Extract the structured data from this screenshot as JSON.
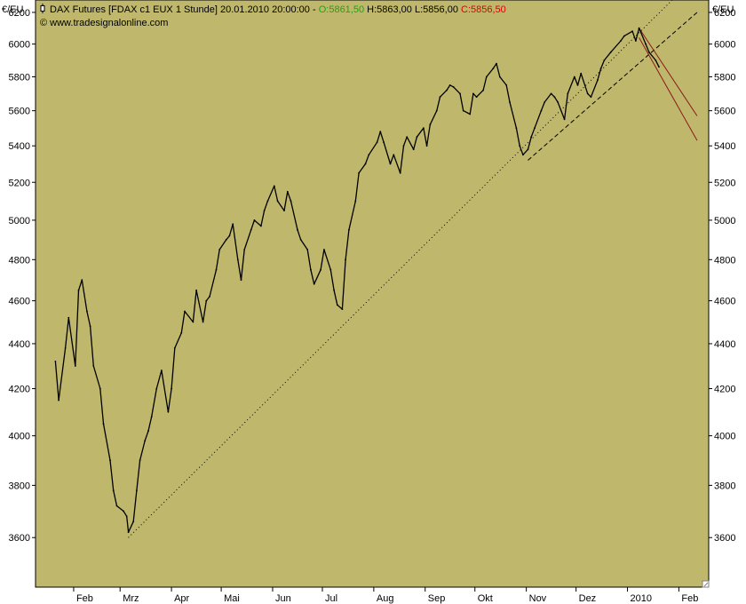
{
  "header": {
    "symbol_title": "DAX Futures [FDAX c1 EUX  1 Stunde]",
    "datetime": "20.01.2010 20:00:00",
    "separator": " - ",
    "open_label": "O:",
    "open_value": "5861,50",
    "high_label": "H:",
    "high_value": "5863,00",
    "low_label": "L:",
    "low_value": "5856,00",
    "close_label": "C:",
    "close_value": "5856,50",
    "copyright": "© www.tradesignalonline.com",
    "open_color": "#11aa11",
    "close_color": "#dd0000"
  },
  "chart_data": {
    "type": "line",
    "unit_label": "€/EU",
    "background_color": "#bfb86c",
    "price_color": "#000000",
    "channel_color": "#8b1a1a",
    "ylim": [
      3420,
      6280
    ],
    "y_scale": "log",
    "y_ticks": [
      3600,
      3800,
      4000,
      4200,
      4400,
      4600,
      4800,
      5000,
      5200,
      5400,
      5600,
      5800,
      6000,
      6200
    ],
    "x_labels": [
      "Feb",
      "Mrz",
      "Apr",
      "Mai",
      "Jun",
      "Jul",
      "Aug",
      "Sep",
      "Okt",
      "Nov",
      "Dez",
      "2010",
      "Feb"
    ],
    "grid": false,
    "series": [
      {
        "x": [
          "2009-01-21",
          "2009-01-23",
          "2009-01-27",
          "2009-01-29",
          "2009-02-02",
          "2009-02-04",
          "2009-02-06",
          "2009-02-09",
          "2009-02-11",
          "2009-02-13",
          "2009-02-17",
          "2009-02-19",
          "2009-02-23",
          "2009-02-25",
          "2009-02-27",
          "2009-03-03",
          "2009-03-05",
          "2009-03-06",
          "2009-03-09",
          "2009-03-11",
          "2009-03-13",
          "2009-03-16",
          "2009-03-18",
          "2009-03-20",
          "2009-03-23",
          "2009-03-26",
          "2009-03-30",
          "2009-04-01",
          "2009-04-03",
          "2009-04-07",
          "2009-04-09",
          "2009-04-14",
          "2009-04-16",
          "2009-04-20",
          "2009-04-22",
          "2009-04-24",
          "2009-04-28",
          "2009-04-30",
          "2009-05-04",
          "2009-05-06",
          "2009-05-08",
          "2009-05-11",
          "2009-05-13",
          "2009-05-15",
          "2009-05-19",
          "2009-05-21",
          "2009-05-25",
          "2009-05-27",
          "2009-05-29",
          "2009-06-02",
          "2009-06-04",
          "2009-06-08",
          "2009-06-10",
          "2009-06-12",
          "2009-06-16",
          "2009-06-18",
          "2009-06-22",
          "2009-06-24",
          "2009-06-26",
          "2009-06-30",
          "2009-07-02",
          "2009-07-06",
          "2009-07-08",
          "2009-07-10",
          "2009-07-13",
          "2009-07-15",
          "2009-07-17",
          "2009-07-21",
          "2009-07-23",
          "2009-07-27",
          "2009-07-29",
          "2009-08-03",
          "2009-08-05",
          "2009-08-07",
          "2009-08-11",
          "2009-08-13",
          "2009-08-17",
          "2009-08-19",
          "2009-08-21",
          "2009-08-25",
          "2009-08-27",
          "2009-08-31",
          "2009-09-02",
          "2009-09-04",
          "2009-09-08",
          "2009-09-10",
          "2009-09-14",
          "2009-09-16",
          "2009-09-18",
          "2009-09-22",
          "2009-09-24",
          "2009-09-28",
          "2009-09-30",
          "2009-10-02",
          "2009-10-06",
          "2009-10-08",
          "2009-10-12",
          "2009-10-14",
          "2009-10-16",
          "2009-10-20",
          "2009-10-22",
          "2009-10-26",
          "2009-10-28",
          "2009-10-30",
          "2009-11-02",
          "2009-11-04",
          "2009-11-06",
          "2009-11-10",
          "2009-11-12",
          "2009-11-16",
          "2009-11-18",
          "2009-11-20",
          "2009-11-24",
          "2009-11-26",
          "2009-11-30",
          "2009-12-02",
          "2009-12-04",
          "2009-12-08",
          "2009-12-10",
          "2009-12-14",
          "2009-12-16",
          "2009-12-18",
          "2009-12-22",
          "2009-12-28",
          "2009-12-30",
          "2010-01-04",
          "2010-01-06",
          "2010-01-08",
          "2010-01-12",
          "2010-01-14",
          "2010-01-18",
          "2010-01-20"
        ],
        "values": [
          4320,
          4150,
          4380,
          4520,
          4300,
          4650,
          4700,
          4550,
          4480,
          4300,
          4200,
          4050,
          3900,
          3780,
          3720,
          3700,
          3680,
          3620,
          3660,
          3780,
          3900,
          3980,
          4020,
          4080,
          4200,
          4280,
          4100,
          4200,
          4380,
          4450,
          4550,
          4500,
          4650,
          4500,
          4600,
          4620,
          4750,
          4850,
          4900,
          4920,
          4980,
          4800,
          4700,
          4850,
          4950,
          5000,
          4970,
          5050,
          5100,
          5180,
          5100,
          5050,
          5150,
          5100,
          4950,
          4900,
          4850,
          4750,
          4680,
          4750,
          4850,
          4750,
          4650,
          4580,
          4560,
          4800,
          4950,
          5100,
          5250,
          5300,
          5350,
          5420,
          5480,
          5420,
          5300,
          5350,
          5250,
          5400,
          5450,
          5380,
          5450,
          5500,
          5400,
          5520,
          5600,
          5680,
          5720,
          5750,
          5740,
          5700,
          5600,
          5580,
          5700,
          5680,
          5720,
          5800,
          5850,
          5880,
          5800,
          5750,
          5650,
          5500,
          5400,
          5350,
          5380,
          5450,
          5500,
          5600,
          5650,
          5700,
          5680,
          5650,
          5550,
          5700,
          5800,
          5750,
          5820,
          5700,
          5680,
          5780,
          5850,
          5900,
          5950,
          6020,
          6050,
          6080,
          6020,
          6100,
          6000,
          5950,
          5900,
          5860
        ]
      }
    ],
    "support_line_dotted": {
      "from": [
        "2009-03-06",
        3600
      ],
      "to": [
        "2010-01-28",
        6280
      ]
    },
    "support_line_dashed": {
      "from": [
        "2009-11-02",
        5320
      ],
      "to": [
        "2010-02-12",
        6200
      ]
    },
    "falling_channel": {
      "upper": {
        "from": [
          "2010-01-08",
          6100
        ],
        "to": [
          "2010-02-12",
          5570
        ]
      },
      "lower": {
        "from": [
          "2010-01-08",
          6040
        ],
        "to": [
          "2010-02-12",
          5430
        ]
      }
    }
  }
}
